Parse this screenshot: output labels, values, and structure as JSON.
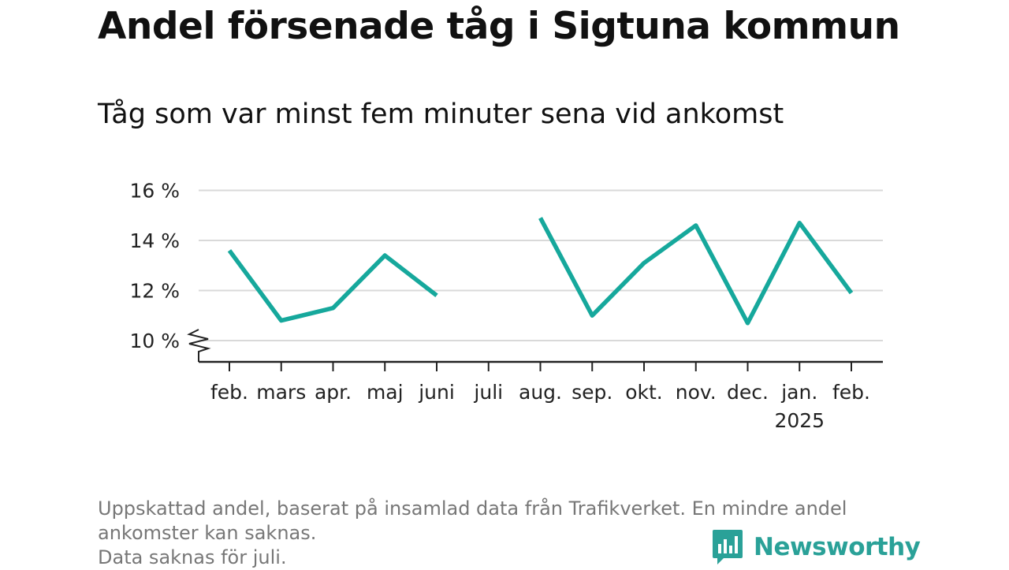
{
  "header": {
    "title": "Andel försenade tåg i Sigtuna kommun",
    "subtitle": "Tåg som var minst fem minuter sena vid ankomst"
  },
  "chart_data": {
    "type": "line",
    "categories": [
      "feb.",
      "mars",
      "apr.",
      "maj",
      "juni",
      "juli",
      "aug.",
      "sep.",
      "okt.",
      "nov.",
      "dec.",
      "jan.",
      "feb."
    ],
    "category_sublabels": [
      "",
      "",
      "",
      "",
      "",
      "",
      "",
      "",
      "",
      "",
      "",
      "2025",
      ""
    ],
    "series": [
      {
        "values": [
          13.6,
          10.8,
          11.3,
          13.4,
          11.8,
          null,
          14.9,
          11.0,
          13.1,
          14.6,
          10.7,
          14.7,
          11.9
        ],
        "color": "#16a89c"
      }
    ],
    "y_ticks": [
      "10 %",
      "12 %",
      "14 %",
      "16 %"
    ],
    "y_tick_values": [
      10,
      12,
      14,
      16
    ],
    "ylim": [
      9.1,
      16
    ],
    "y_axis_break": true,
    "grid": true,
    "xlabel": "",
    "ylabel": ""
  },
  "footnote": {
    "line1": "Uppskattad andel, baserat på insamlad data från Trafikverket. En mindre andel",
    "line2": "ankomster kan saknas.",
    "line3": "Data saknas för juli."
  },
  "brand": {
    "name": "Newsworthy",
    "icon": "bar-chart-bubble-icon",
    "color": "#2aa198"
  }
}
